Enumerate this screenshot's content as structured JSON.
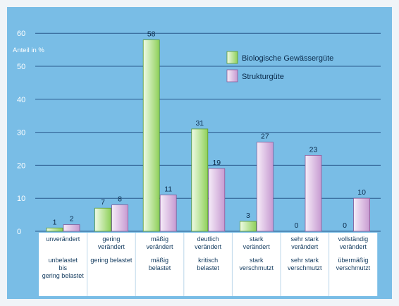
{
  "chart_data": {
    "type": "bar",
    "title": "",
    "ylabel": "Anteil in %",
    "ylim": [
      0,
      60
    ],
    "yticks": [
      0,
      10,
      20,
      30,
      40,
      50,
      60
    ],
    "grid": true,
    "legend_position": "top-right",
    "categories": [
      {
        "line1": [
          "unverändert"
        ],
        "line2": [
          "unbelastet",
          "bis",
          "gering belastet"
        ]
      },
      {
        "line1": [
          "gering",
          "verändert"
        ],
        "line2": [
          "gering belastet"
        ]
      },
      {
        "line1": [
          "mäßig",
          "verändert"
        ],
        "line2": [
          "mäßig",
          "belastet"
        ]
      },
      {
        "line1": [
          "deutlich",
          "verändert"
        ],
        "line2": [
          "kritisch",
          "belastet"
        ]
      },
      {
        "line1": [
          "stark",
          "verändert"
        ],
        "line2": [
          "stark",
          "verschmutzt"
        ]
      },
      {
        "line1": [
          "sehr stark",
          "verändert"
        ],
        "line2": [
          "sehr stark",
          "verschmutzt"
        ]
      },
      {
        "line1": [
          "vollständig",
          "verändert"
        ],
        "line2": [
          "übermäßig",
          "verschmutzt"
        ]
      }
    ],
    "series": [
      {
        "name": "Biologische Gewässergüte",
        "color": "#8fd05a",
        "values": [
          1,
          7,
          58,
          31,
          3,
          0,
          0
        ]
      },
      {
        "name": "Strukturgüte",
        "color": "#c79ad1",
        "values": [
          2,
          8,
          11,
          19,
          27,
          23,
          10
        ]
      }
    ],
    "colors": {
      "background": "#79bde6",
      "gridline": "#2a5a8c",
      "category_panel": "#ffffff",
      "green_light": "#e8f7d6",
      "green": "#8fd05a",
      "purple_light": "#f1e4f4",
      "purple": "#c79ad1"
    }
  }
}
